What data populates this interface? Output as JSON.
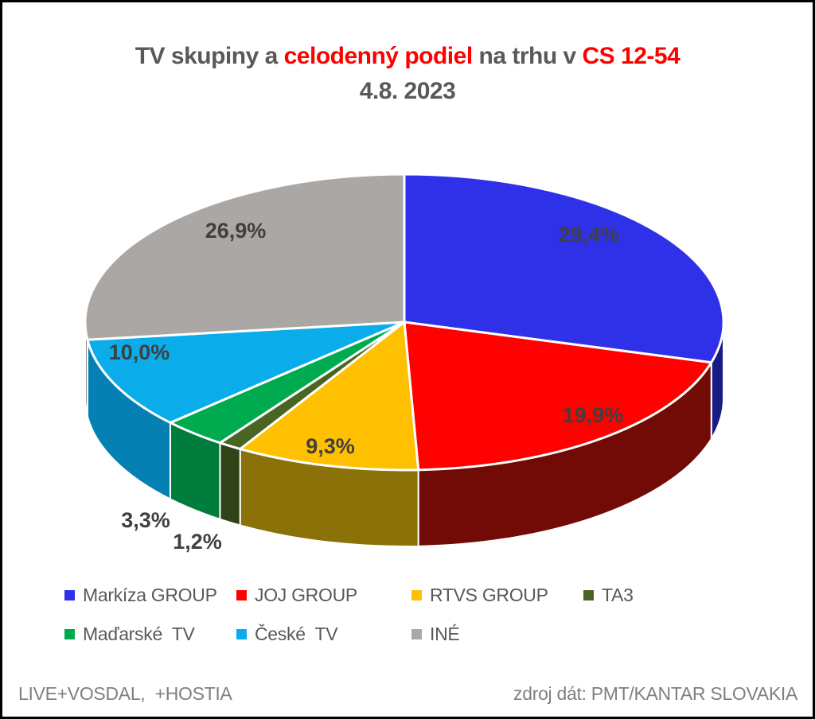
{
  "title": {
    "segments": [
      {
        "text": "TV skupiny a ",
        "color": "#595959"
      },
      {
        "text": "celodenný podiel",
        "color": "#FF0000"
      },
      {
        "text": " na trhu v ",
        "color": "#595959"
      },
      {
        "text": "CS 12-54",
        "color": "#FF0000"
      }
    ],
    "line2": "4.8. 2023"
  },
  "chart_data": {
    "type": "pie",
    "title": "TV skupiny a celodenný podiel na trhu v CS 12-54",
    "subtitle": "4.8. 2023",
    "style": "3d-pie",
    "start_angle_deg": 0,
    "direction": "clockwise",
    "legend_position": "bottom",
    "series": [
      {
        "name": "Markíza GROUP",
        "value": 29.4,
        "label": "29,4%",
        "color": "#2E31E7",
        "side_color": "#181A86"
      },
      {
        "name": "JOJ GROUP",
        "value": 19.9,
        "label": "19,9%",
        "color": "#FE0100",
        "side_color": "#720A05"
      },
      {
        "name": "RTVS GROUP",
        "value": 9.3,
        "label": "9,3%",
        "color": "#FEC000",
        "side_color": "#8A7208"
      },
      {
        "name": "TA3",
        "value": 1.2,
        "label": "1,2%",
        "color": "#4A6522",
        "side_color": "#2F4316"
      },
      {
        "name": "Maďarské  TV",
        "value": 3.3,
        "label": "3,3%",
        "color": "#00AB50",
        "side_color": "#007C3C"
      },
      {
        "name": "České  TV",
        "value": 10.0,
        "label": "10,0%",
        "color": "#0AACE9",
        "side_color": "#0580B3"
      },
      {
        "name": "INÉ",
        "value": 26.9,
        "label": "26,9%",
        "color": "#ABA7A4",
        "side_color": "#7B7876"
      }
    ],
    "label_color": "#404040"
  },
  "footer": {
    "left": "LIVE+VOSDAL,  +HOSTIA",
    "right": "zdroj dát: PMT/KANTAR SLOVAKIA"
  }
}
